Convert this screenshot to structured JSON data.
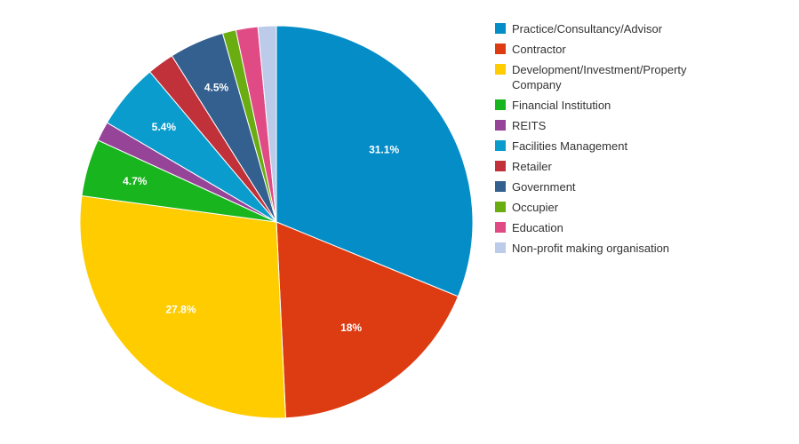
{
  "chart_data": {
    "type": "pie",
    "title": "",
    "slices": [
      {
        "label": "Practice/Consultancy/Advisor",
        "value": 31.1,
        "display": "31.1%",
        "color": "#058dc7"
      },
      {
        "label": "Contractor",
        "value": 18.0,
        "display": "18%",
        "color": "#dd3b12"
      },
      {
        "label": "Development/Investment/Property Company",
        "value": 27.8,
        "display": "27.8%",
        "color": "#ffcc00"
      },
      {
        "label": "Financial Institution",
        "value": 4.7,
        "display": "4.7%",
        "color": "#19b51e"
      },
      {
        "label": "REITS",
        "value": 1.6,
        "display": "",
        "color": "#964498"
      },
      {
        "label": "Facilities Management",
        "value": 5.4,
        "display": "5.4%",
        "color": "#0a9ccc"
      },
      {
        "label": "Retailer",
        "value": 2.2,
        "display": "",
        "color": "#c1313a"
      },
      {
        "label": "Government",
        "value": 4.5,
        "display": "4.5%",
        "color": "#33608f"
      },
      {
        "label": "Occupier",
        "value": 1.1,
        "display": "",
        "color": "#6aad10"
      },
      {
        "label": "Education",
        "value": 1.8,
        "display": "",
        "color": "#e04b86"
      },
      {
        "label": "Non-profit making organisation",
        "value": 1.5,
        "display": "",
        "color": "#bccbe9"
      }
    ],
    "start_angle": "12 o'clock",
    "direction": "clockwise",
    "legend": "right"
  }
}
